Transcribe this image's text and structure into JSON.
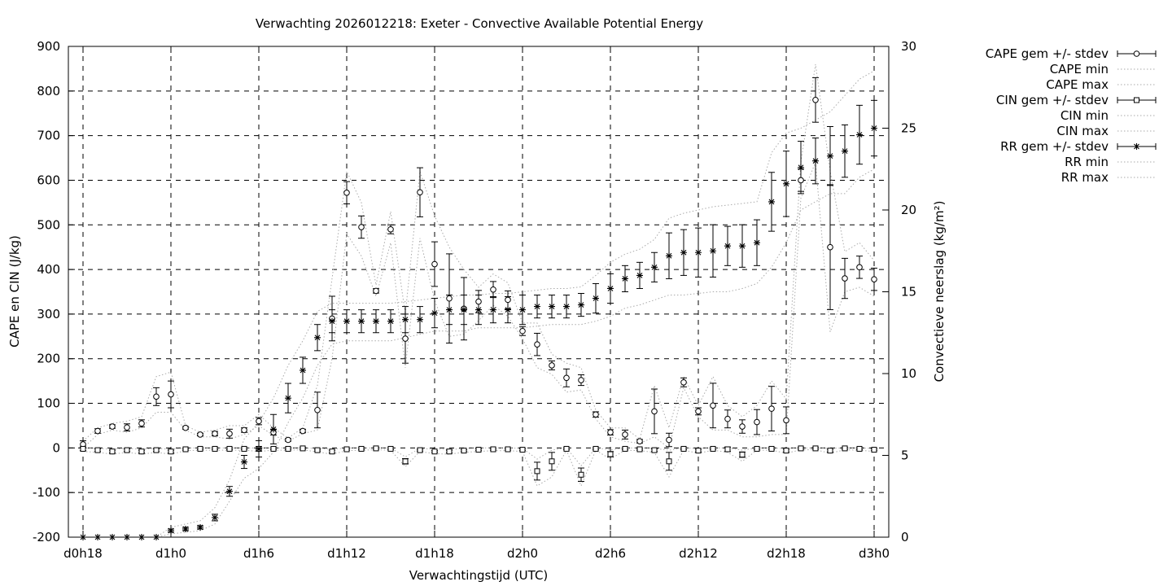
{
  "chart_data": {
    "type": "line",
    "title": "Verwachting 2026012218: Exeter - Convective Available Potential Energy",
    "xlabel": "Verwachtingstijd (UTC)",
    "ylabel_left": "CAPE en CIN (J/kg)",
    "ylabel_right": "Convectieve neerslag (kg/m²)",
    "x_unit": "hours",
    "xlim": [
      -1,
      55
    ],
    "ylim_left": [
      -200,
      900
    ],
    "ylim_right": [
      0,
      30
    ],
    "grid": true,
    "legend_position": "right, outside plot",
    "x_ticks": [
      {
        "value": 0,
        "label": "d0h18"
      },
      {
        "value": 6,
        "label": "d1h0"
      },
      {
        "value": 12,
        "label": "d1h6"
      },
      {
        "value": 18,
        "label": "d1h12"
      },
      {
        "value": 24,
        "label": "d1h18"
      },
      {
        "value": 30,
        "label": "d2h0"
      },
      {
        "value": 36,
        "label": "d2h6"
      },
      {
        "value": 42,
        "label": "d2h12"
      },
      {
        "value": 48,
        "label": "d2h18"
      },
      {
        "value": 54,
        "label": "d3h0"
      }
    ],
    "y_ticks_left": [
      "900",
      "800",
      "700",
      "600",
      "500",
      "400",
      "300",
      "200",
      "100",
      "0",
      "-100",
      "-200"
    ],
    "y_ticks_right": [
      "30",
      "25",
      "20",
      "15",
      "10",
      "5",
      "0"
    ],
    "x": [
      0,
      1,
      2,
      3,
      4,
      5,
      6,
      7,
      8,
      9,
      10,
      11,
      12,
      13,
      14,
      15,
      16,
      17,
      18,
      19,
      20,
      21,
      22,
      23,
      24,
      25,
      26,
      27,
      28,
      29,
      30,
      31,
      32,
      33,
      34,
      35,
      36,
      37,
      38,
      39,
      40,
      41,
      42,
      43,
      44,
      45,
      46,
      47,
      48,
      49,
      50,
      51,
      52,
      53,
      54
    ],
    "series": [
      {
        "name": "CAPE gem +/- stdev",
        "axis": "left",
        "marker": "circle",
        "values": [
          8,
          38,
          48,
          46,
          55,
          115,
          120,
          45,
          30,
          32,
          32,
          40,
          60,
          35,
          18,
          38,
          85,
          290,
          572,
          495,
          352,
          490,
          245,
          573,
          412,
          335,
          312,
          328,
          355,
          332,
          262,
          232,
          185,
          157,
          152,
          75,
          35,
          30,
          15,
          82,
          18,
          147,
          82,
          95,
          65,
          48,
          58,
          88,
          62,
          600,
          780,
          450,
          380,
          405,
          378
        ],
        "stdev": [
          8,
          5,
          4,
          8,
          8,
          20,
          30,
          3,
          3,
          5,
          10,
          5,
          8,
          6,
          3,
          4,
          40,
          50,
          25,
          25,
          5,
          10,
          55,
          55,
          50,
          100,
          70,
          25,
          18,
          20,
          10,
          25,
          10,
          20,
          12,
          6,
          6,
          10,
          4,
          50,
          15,
          10,
          8,
          50,
          20,
          15,
          28,
          50,
          30,
          25,
          50,
          140,
          45,
          25,
          25
        ]
      },
      {
        "name": "CAPE min",
        "axis": "left",
        "marker": "none",
        "values": [
          0,
          30,
          40,
          35,
          45,
          80,
          80,
          40,
          25,
          25,
          20,
          30,
          50,
          28,
          15,
          32,
          40,
          200,
          480,
          430,
          340,
          460,
          180,
          470,
          330,
          250,
          255,
          285,
          320,
          295,
          245,
          180,
          165,
          125,
          130,
          65,
          25,
          15,
          10,
          25,
          0,
          135,
          70,
          40,
          40,
          25,
          25,
          30,
          30,
          560,
          640,
          260,
          350,
          360,
          340
        ]
      },
      {
        "name": "CAPE max",
        "axis": "left",
        "marker": "none",
        "values": [
          15,
          45,
          55,
          60,
          70,
          160,
          170,
          50,
          35,
          40,
          50,
          50,
          75,
          45,
          22,
          45,
          140,
          380,
          620,
          550,
          365,
          530,
          300,
          620,
          520,
          450,
          400,
          360,
          390,
          370,
          280,
          280,
          210,
          190,
          180,
          85,
          45,
          45,
          20,
          140,
          45,
          160,
          95,
          160,
          95,
          70,
          95,
          150,
          110,
          640,
          860,
          620,
          440,
          460,
          420
        ]
      },
      {
        "name": "CIN gem +/- stdev",
        "axis": "left",
        "marker": "square",
        "values": [
          -2,
          -5,
          -8,
          -5,
          -8,
          -5,
          -8,
          -3,
          -2,
          -2,
          -2,
          -2,
          -2,
          -2,
          -2,
          -1,
          -5,
          -8,
          -3,
          -2,
          -1,
          -2,
          -30,
          -5,
          -8,
          -8,
          -6,
          -4,
          -3,
          -3,
          -4,
          -52,
          -30,
          -2,
          -60,
          -2,
          -14,
          -2,
          -3,
          -5,
          -30,
          -2,
          -6,
          -2,
          -3,
          -15,
          -2,
          -2,
          -6,
          -1,
          -1,
          -6,
          -1,
          -2,
          -4
        ],
        "stdev": [
          4,
          3,
          3,
          3,
          3,
          3,
          3,
          2,
          2,
          2,
          2,
          2,
          5,
          2,
          2,
          2,
          2,
          3,
          2,
          2,
          2,
          2,
          6,
          2,
          2,
          3,
          2,
          2,
          2,
          2,
          2,
          20,
          20,
          2,
          15,
          2,
          6,
          2,
          2,
          3,
          20,
          2,
          3,
          2,
          5,
          6,
          2,
          2,
          3,
          2,
          2,
          3,
          2,
          2,
          2
        ]
      },
      {
        "name": "CIN min",
        "axis": "left",
        "marker": "none",
        "values": [
          -8,
          -10,
          -14,
          -10,
          -14,
          -10,
          -14,
          -6,
          -5,
          -5,
          -5,
          -5,
          -8,
          -5,
          -5,
          -4,
          -9,
          -14,
          -6,
          -5,
          -4,
          -5,
          -42,
          -8,
          -13,
          -14,
          -10,
          -8,
          -6,
          -6,
          -8,
          -85,
          -65,
          -5,
          -85,
          -5,
          -25,
          -5,
          -6,
          -10,
          -65,
          -5,
          -12,
          -5,
          -10,
          -30,
          -5,
          -5,
          -12,
          -4,
          -4,
          -12,
          -4,
          -5,
          -8
        ]
      },
      {
        "name": "CIN max",
        "axis": "left",
        "marker": "none",
        "values": [
          0,
          -1,
          -3,
          -1,
          -3,
          -1,
          -3,
          0,
          0,
          0,
          0,
          0,
          0,
          0,
          0,
          0,
          -1,
          -3,
          0,
          0,
          0,
          0,
          -20,
          -1,
          -3,
          -3,
          -2,
          0,
          0,
          0,
          -1,
          -25,
          -5,
          0,
          -40,
          0,
          -4,
          0,
          0,
          -1,
          -5,
          0,
          -1,
          0,
          0,
          -5,
          0,
          0,
          -1,
          0,
          0,
          -1,
          0,
          0,
          -1
        ]
      },
      {
        "name": "RR gem +/- stdev",
        "axis": "right",
        "marker": "star",
        "values": [
          0,
          0,
          0,
          0,
          0,
          0,
          0.4,
          0.5,
          0.6,
          1.2,
          2.8,
          4.6,
          5.4,
          6.6,
          8.5,
          10.2,
          12.2,
          13.2,
          13.2,
          13.2,
          13.2,
          13.2,
          13.3,
          13.3,
          13.7,
          13.9,
          13.9,
          13.9,
          13.9,
          13.9,
          13.9,
          14.1,
          14.1,
          14.1,
          14.2,
          14.6,
          15.2,
          15.8,
          16.0,
          16.5,
          17.2,
          17.4,
          17.4,
          17.5,
          17.8,
          17.8,
          18.0,
          20.5,
          21.6,
          22.6,
          23.0,
          23.3,
          23.6,
          24.6,
          25.0
        ],
        "stdev": [
          0,
          0,
          0,
          0,
          0,
          0,
          0.1,
          0.1,
          0.1,
          0.2,
          0.3,
          0.4,
          0.5,
          0.9,
          0.9,
          0.8,
          0.8,
          0.7,
          0.7,
          0.7,
          0.7,
          0.7,
          0.8,
          0.8,
          0.9,
          0.9,
          0.9,
          0.9,
          0.8,
          0.8,
          0.9,
          0.7,
          0.7,
          0.7,
          0.7,
          0.9,
          0.9,
          0.8,
          0.8,
          0.9,
          1.4,
          1.4,
          1.5,
          1.6,
          1.2,
          1.3,
          1.4,
          1.8,
          2.0,
          1.6,
          1.4,
          1.8,
          1.6,
          1.8,
          1.7
        ]
      },
      {
        "name": "RR min",
        "axis": "right",
        "marker": "none",
        "values": [
          0,
          0,
          0,
          0,
          0,
          0,
          0.2,
          0.3,
          0.4,
          0.8,
          2.2,
          3.6,
          4.2,
          5.2,
          7.0,
          8.5,
          10.5,
          11.8,
          12.0,
          12.0,
          12.0,
          12.0,
          12.2,
          12.4,
          12.6,
          12.6,
          12.6,
          12.8,
          12.8,
          12.8,
          12.8,
          12.9,
          13.0,
          13.0,
          13.0,
          13.2,
          13.5,
          14.0,
          14.2,
          14.5,
          14.8,
          14.8,
          14.9,
          15.0,
          15.0,
          15.2,
          15.5,
          16.5,
          18.0,
          20.0,
          20.5,
          21.0,
          21.0,
          22.0,
          22.5
        ]
      },
      {
        "name": "RR max",
        "axis": "right",
        "marker": "none",
        "values": [
          0,
          0,
          0,
          0,
          0,
          0,
          0.6,
          0.8,
          1.0,
          1.8,
          3.5,
          6.0,
          7.0,
          8.5,
          10.5,
          12.0,
          13.8,
          14.3,
          14.3,
          14.3,
          14.3,
          14.3,
          14.4,
          14.5,
          14.6,
          14.7,
          14.8,
          14.8,
          14.9,
          14.9,
          15.0,
          15.1,
          15.2,
          15.2,
          15.3,
          16.0,
          16.8,
          17.3,
          17.6,
          18.2,
          19.5,
          19.8,
          20.0,
          20.2,
          20.3,
          20.4,
          20.5,
          23.5,
          24.7,
          25.0,
          25.5,
          26.0,
          27.0,
          28.0,
          28.5
        ]
      }
    ]
  }
}
